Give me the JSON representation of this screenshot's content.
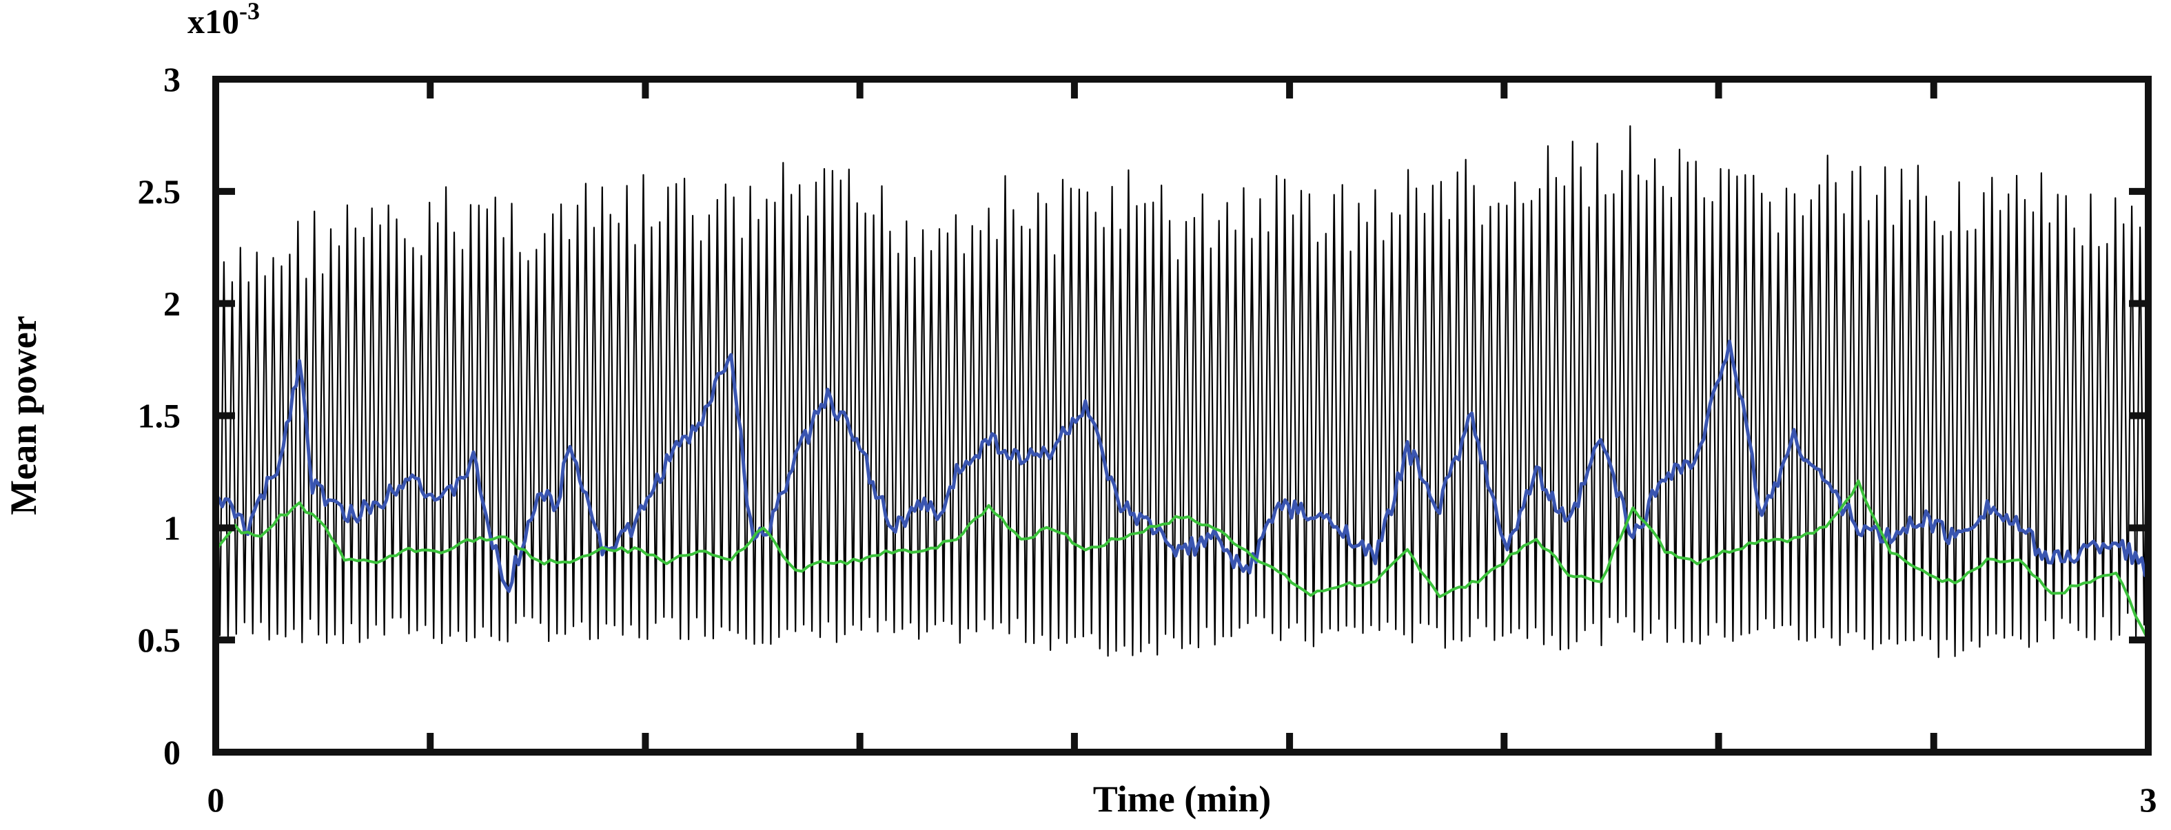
{
  "chart_data": {
    "type": "line",
    "title": "",
    "xlabel": "Time (min)",
    "ylabel": "Mean power",
    "y_exponent_label": "x10",
    "y_exponent_power": "-3",
    "xlim": [
      0,
      3
    ],
    "ylim": [
      0,
      3
    ],
    "x_tick_labels": [
      "0",
      "3"
    ],
    "y_ticks": [
      0,
      0.5,
      1,
      1.5,
      2,
      2.5,
      3
    ],
    "y_tick_labels": [
      "0",
      "0.5",
      "1",
      "1.5",
      "2",
      "2.5",
      "3"
    ],
    "x_minor_ticks": [
      0.333,
      0.667,
      1.0,
      1.333,
      1.667,
      2.0,
      2.333,
      2.667
    ],
    "grid": false,
    "legend": "none",
    "series": [
      {
        "color": "#000000",
        "description_of_shape": "dense oscillation",
        "oscillation_cycles": 235,
        "band_low": 0.55,
        "band_high": 2.35,
        "x": [
          0.0,
          0.1,
          0.2,
          0.3,
          0.4,
          0.5,
          0.6,
          0.7,
          0.8,
          0.9,
          1.0,
          1.1,
          1.2,
          1.3,
          1.4,
          1.5,
          1.6,
          1.7,
          1.8,
          1.9,
          2.0,
          2.1,
          2.2,
          2.3,
          2.4,
          2.5,
          2.6,
          2.7,
          2.8,
          2.9,
          3.0
        ],
        "peaks": [
          2.2,
          2.4,
          2.5,
          2.45,
          2.6,
          2.5,
          2.55,
          2.6,
          2.55,
          2.65,
          2.6,
          2.5,
          2.6,
          2.55,
          2.65,
          2.5,
          2.6,
          2.6,
          2.55,
          2.7,
          2.6,
          2.75,
          2.8,
          2.65,
          2.6,
          2.7,
          2.6,
          2.65,
          2.6,
          2.55,
          2.4
        ],
        "troughs": [
          0.45,
          0.5,
          0.45,
          0.5,
          0.45,
          0.5,
          0.45,
          0.5,
          0.5,
          0.45,
          0.5,
          0.45,
          0.5,
          0.45,
          0.4,
          0.45,
          0.5,
          0.45,
          0.5,
          0.45,
          0.5,
          0.45,
          0.5,
          0.45,
          0.5,
          0.45,
          0.45,
          0.4,
          0.45,
          0.5,
          0.5
        ]
      },
      {
        "color": "#3a55b0",
        "x": [
          0.0,
          0.05,
          0.1,
          0.13,
          0.15,
          0.2,
          0.25,
          0.3,
          0.35,
          0.4,
          0.45,
          0.5,
          0.53,
          0.55,
          0.6,
          0.65,
          0.7,
          0.75,
          0.8,
          0.83,
          0.85,
          0.9,
          0.95,
          1.0,
          1.05,
          1.1,
          1.13,
          1.15,
          1.2,
          1.25,
          1.3,
          1.35,
          1.4,
          1.45,
          1.5,
          1.55,
          1.6,
          1.65,
          1.7,
          1.75,
          1.8,
          1.85,
          1.9,
          1.95,
          2.0,
          2.05,
          2.1,
          2.15,
          2.2,
          2.25,
          2.3,
          2.35,
          2.4,
          2.45,
          2.5,
          2.55,
          2.6,
          2.65,
          2.7,
          2.75,
          2.8,
          2.85,
          2.9,
          2.95,
          3.0
        ],
        "y": [
          1.15,
          1.0,
          1.3,
          1.75,
          1.2,
          1.05,
          1.1,
          1.25,
          1.1,
          1.3,
          0.7,
          1.15,
          1.1,
          1.4,
          0.9,
          1.0,
          1.3,
          1.45,
          1.8,
          1.0,
          0.95,
          1.3,
          1.6,
          1.35,
          1.0,
          1.1,
          1.05,
          1.25,
          1.4,
          1.3,
          1.35,
          1.55,
          1.1,
          1.0,
          0.9,
          0.95,
          0.8,
          1.1,
          1.05,
          1.0,
          0.85,
          1.35,
          1.1,
          1.5,
          0.9,
          1.25,
          1.0,
          1.4,
          0.95,
          1.25,
          1.3,
          1.85,
          1.05,
          1.4,
          1.2,
          1.0,
          0.95,
          1.05,
          0.95,
          1.1,
          1.0,
          0.85,
          0.9,
          0.95,
          0.8
        ]
      },
      {
        "color": "#3cc23c",
        "x": [
          0.0,
          0.03,
          0.07,
          0.1,
          0.13,
          0.17,
          0.2,
          0.25,
          0.3,
          0.35,
          0.4,
          0.45,
          0.5,
          0.55,
          0.6,
          0.65,
          0.7,
          0.75,
          0.8,
          0.85,
          0.9,
          0.95,
          1.0,
          1.05,
          1.1,
          1.15,
          1.2,
          1.25,
          1.3,
          1.35,
          1.4,
          1.45,
          1.5,
          1.55,
          1.6,
          1.65,
          1.7,
          1.75,
          1.8,
          1.85,
          1.9,
          1.95,
          2.0,
          2.05,
          2.1,
          2.15,
          2.2,
          2.25,
          2.3,
          2.35,
          2.4,
          2.45,
          2.5,
          2.55,
          2.6,
          2.65,
          2.7,
          2.75,
          2.8,
          2.85,
          2.9,
          2.95,
          3.0
        ],
        "y": [
          0.9,
          1.0,
          0.95,
          1.05,
          1.1,
          1.0,
          0.85,
          0.85,
          0.9,
          0.9,
          0.95,
          0.95,
          0.85,
          0.85,
          0.9,
          0.9,
          0.85,
          0.9,
          0.85,
          1.0,
          0.8,
          0.85,
          0.85,
          0.9,
          0.9,
          0.95,
          1.1,
          0.95,
          1.0,
          0.9,
          0.95,
          1.0,
          1.05,
          1.0,
          0.9,
          0.8,
          0.7,
          0.75,
          0.75,
          0.9,
          0.7,
          0.75,
          0.85,
          0.95,
          0.8,
          0.75,
          1.1,
          0.9,
          0.85,
          0.9,
          0.95,
          0.95,
          1.0,
          1.2,
          0.9,
          0.8,
          0.75,
          0.85,
          0.85,
          0.7,
          0.75,
          0.8,
          0.5
        ]
      }
    ]
  }
}
